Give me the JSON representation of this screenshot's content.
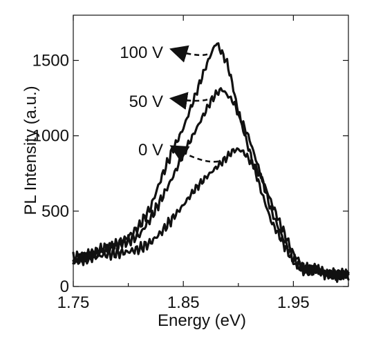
{
  "chart_data": {
    "type": "line",
    "title": "",
    "xlabel": "Energy (eV)",
    "ylabel": "PL Intensity (a.u.)",
    "xlim": [
      1.75,
      2.0
    ],
    "ylim": [
      0,
      1800
    ],
    "x_ticks": [
      1.75,
      1.85,
      1.95
    ],
    "x_tick_labels": [
      "1.75",
      "1.85",
      "1.95"
    ],
    "x_minor_ticks": [
      1.8,
      1.9,
      2.0
    ],
    "y_ticks": [
      0,
      500,
      1000,
      1500
    ],
    "y_tick_labels": [
      "0",
      "500",
      "1000",
      "1500"
    ],
    "grid": false,
    "series": [
      {
        "label": "100 V",
        "x": [
          1.75,
          1.76,
          1.77,
          1.78,
          1.79,
          1.8,
          1.81,
          1.82,
          1.83,
          1.84,
          1.85,
          1.86,
          1.87,
          1.875,
          1.88,
          1.885,
          1.89,
          1.895,
          1.9,
          1.91,
          1.92,
          1.93,
          1.94,
          1.95,
          1.96,
          1.97,
          1.98,
          1.99,
          2.0
        ],
        "y": [
          170,
          200,
          220,
          250,
          280,
          330,
          400,
          520,
          720,
          900,
          1050,
          1250,
          1450,
          1540,
          1620,
          1550,
          1480,
          1330,
          1150,
          900,
          650,
          430,
          300,
          160,
          100,
          120,
          90,
          80,
          90
        ]
      },
      {
        "label": "50 V",
        "x": [
          1.75,
          1.76,
          1.77,
          1.78,
          1.79,
          1.8,
          1.81,
          1.82,
          1.83,
          1.84,
          1.85,
          1.86,
          1.87,
          1.875,
          1.88,
          1.885,
          1.89,
          1.895,
          1.9,
          1.91,
          1.92,
          1.93,
          1.94,
          1.95,
          1.96,
          1.97,
          1.98,
          1.99,
          2.0
        ],
        "y": [
          190,
          210,
          230,
          260,
          280,
          300,
          340,
          450,
          580,
          720,
          880,
          1020,
          1160,
          1230,
          1280,
          1310,
          1270,
          1230,
          1150,
          980,
          750,
          500,
          330,
          180,
          110,
          120,
          80,
          70,
          80
        ]
      },
      {
        "label": "0 V",
        "x": [
          1.75,
          1.76,
          1.77,
          1.78,
          1.79,
          1.8,
          1.81,
          1.82,
          1.83,
          1.84,
          1.85,
          1.86,
          1.87,
          1.88,
          1.89,
          1.895,
          1.9,
          1.905,
          1.91,
          1.92,
          1.93,
          1.94,
          1.95,
          1.96,
          1.97,
          1.98,
          1.99,
          2.0
        ],
        "y": [
          160,
          180,
          200,
          210,
          220,
          230,
          250,
          290,
          360,
          450,
          540,
          640,
          720,
          790,
          860,
          900,
          910,
          890,
          840,
          740,
          560,
          380,
          220,
          120,
          110,
          80,
          70,
          80
        ]
      }
    ],
    "annotations": [
      {
        "text": "100 V",
        "series": "100 V",
        "arrow_from_x": 1.875,
        "arrow_from_y": 1540
      },
      {
        "text": "50 V",
        "series": "50 V",
        "arrow_from_x": 1.875,
        "arrow_from_y": 1240
      },
      {
        "text": "0 V",
        "series": "0 V",
        "arrow_from_x": 1.885,
        "arrow_from_y": 830
      }
    ]
  }
}
